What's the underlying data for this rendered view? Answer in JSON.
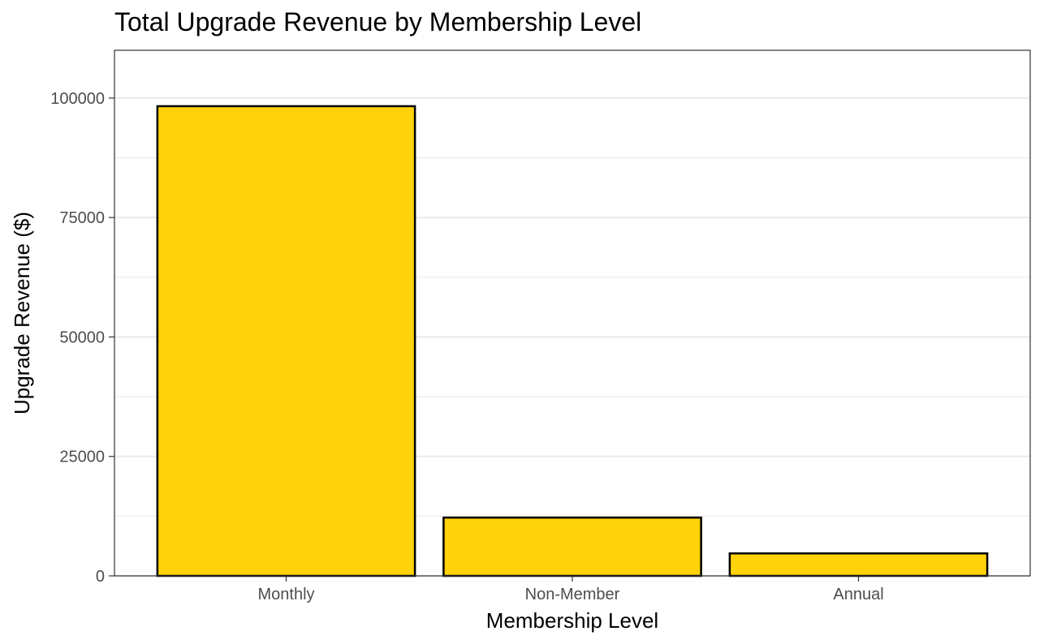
{
  "chart_data": {
    "type": "bar",
    "title": "Total Upgrade Revenue by Membership Level",
    "xlabel": "Membership Level",
    "ylabel": "Upgrade Revenue ($)",
    "categories": [
      "Monthly",
      "Non-Member",
      "Annual"
    ],
    "values": [
      98300,
      12200,
      4700
    ],
    "ylim": [
      0,
      110000
    ],
    "yticks": [
      0,
      25000,
      50000,
      75000,
      100000
    ],
    "ytick_labels": [
      "0",
      "25000",
      "50000",
      "75000",
      "100000"
    ],
    "grid": true,
    "legend": "none",
    "bar_color": "#FFD20A",
    "bar_edge_color": "#000000",
    "gridline_color": "#EBEBEB",
    "panel_border_color": "#333333"
  }
}
